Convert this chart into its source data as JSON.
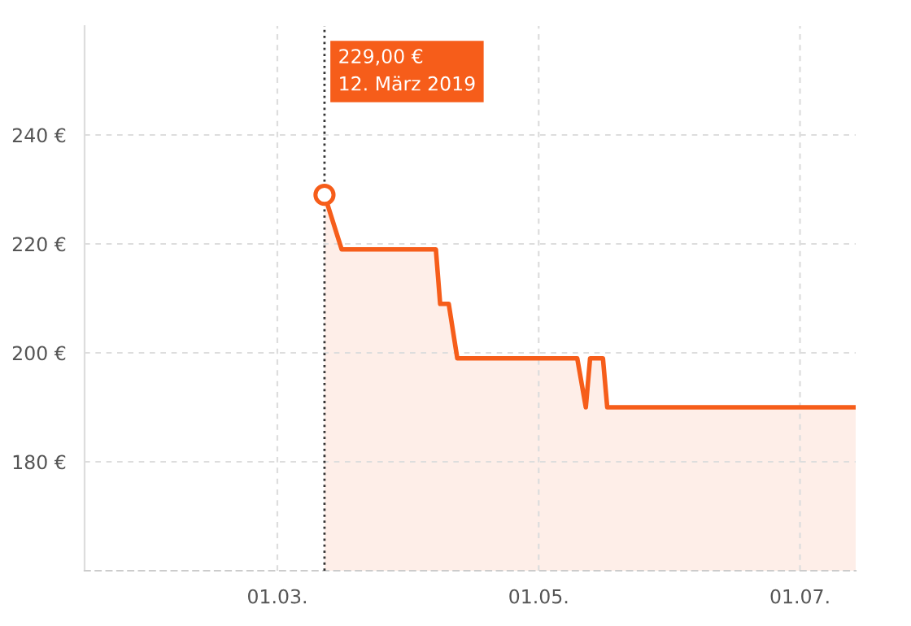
{
  "chart_data": {
    "type": "area",
    "x": [
      "2019-03-12",
      "2019-03-16",
      "2019-04-07",
      "2019-04-08",
      "2019-04-10",
      "2019-04-12",
      "2019-05-10",
      "2019-05-12",
      "2019-05-13",
      "2019-05-16",
      "2019-05-17",
      "2019-07-14"
    ],
    "series": [
      {
        "color": "#f65d1a",
        "values": [
          229,
          219,
          219,
          209,
          209,
          199,
          199,
          190,
          199,
          199,
          190,
          190
        ]
      }
    ],
    "xlim": [
      "2019-01-15",
      "2019-07-14"
    ],
    "xticks": [
      {
        "value": "2019-03-01",
        "label": "01.03."
      },
      {
        "value": "2019-05-01",
        "label": "01.05."
      },
      {
        "value": "2019-07-01",
        "label": "01.07."
      }
    ],
    "ylim": [
      160,
      260
    ],
    "yticks": [
      {
        "value": 180,
        "label": "180 €"
      },
      {
        "value": 200,
        "label": "200 €"
      },
      {
        "value": 220,
        "label": "220 €"
      },
      {
        "value": 240,
        "label": "240 €"
      }
    ],
    "grid": true,
    "ref_lines": [
      {
        "axis": "x",
        "value": "2019-03-12",
        "color": "#333333",
        "line_style": "dotted"
      }
    ],
    "annotations": [
      "229,00 €\n12. März 2019"
    ]
  }
}
